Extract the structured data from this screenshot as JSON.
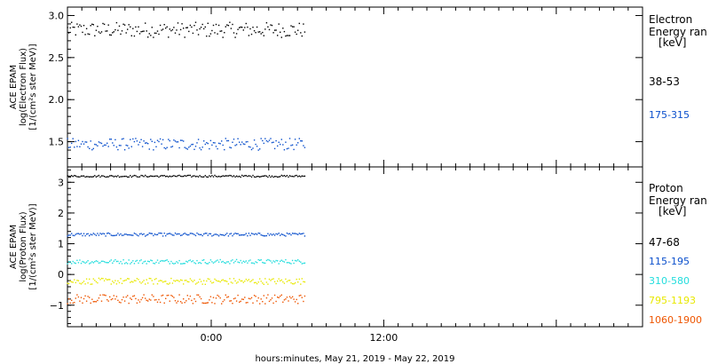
{
  "chart_data": [
    {
      "type": "scatter",
      "panel": "electron",
      "ylabel_lines": [
        "ACE EPAM",
        "log(Electron Flux)",
        "[1/(cm²s ster MeV)]"
      ],
      "ylim": [
        1.2,
        3.1
      ],
      "yticks": [
        1.5,
        2.0,
        2.5,
        3.0
      ],
      "ytick_labels": [
        "1.5",
        "2.0",
        "2.5",
        "3.0"
      ],
      "x_range_hours": [
        -10,
        30
      ],
      "data_end_hours": 6.5,
      "legend_title": [
        "Electron",
        "Energy ran",
        "[keV]"
      ],
      "series": [
        {
          "name": "38-53",
          "color": "#000000",
          "mean": 2.83,
          "jitter": 0.09
        },
        {
          "name": "175-315",
          "color": "#0a4fcc",
          "mean": 1.47,
          "jitter": 0.07
        }
      ]
    },
    {
      "type": "scatter",
      "panel": "proton",
      "ylabel_lines": [
        "ACE EPAM",
        "log(Proton Flux)",
        "[1/(cm²s ster MeV)]"
      ],
      "ylim": [
        -1.7,
        3.5
      ],
      "yticks": [
        -1,
        0,
        1,
        2,
        3
      ],
      "ytick_labels": [
        "−1",
        "0",
        "1",
        "2",
        "3"
      ],
      "x_range_hours": [
        -10,
        30
      ],
      "data_end_hours": 6.5,
      "legend_title": [
        "Proton",
        "Energy ran",
        "[keV]"
      ],
      "series": [
        {
          "name": "47-68",
          "color": "#000000",
          "mean": 3.2,
          "jitter": 0.03
        },
        {
          "name": "115-195",
          "color": "#0a4fcc",
          "mean": 1.3,
          "jitter": 0.05
        },
        {
          "name": "310-580",
          "color": "#22dddd",
          "mean": 0.42,
          "jitter": 0.07
        },
        {
          "name": "795-1193",
          "color": "#e8e800",
          "mean": -0.22,
          "jitter": 0.1
        },
        {
          "name": "1060-1900",
          "color": "#ee5500",
          "mean": -0.8,
          "jitter": 0.15
        }
      ]
    }
  ],
  "x_axis": {
    "ticks_hours": [
      0,
      12
    ],
    "tick_labels": [
      "0:00",
      "12:00"
    ],
    "title": "hours:minutes, May 21, 2019 - May 22, 2019"
  }
}
